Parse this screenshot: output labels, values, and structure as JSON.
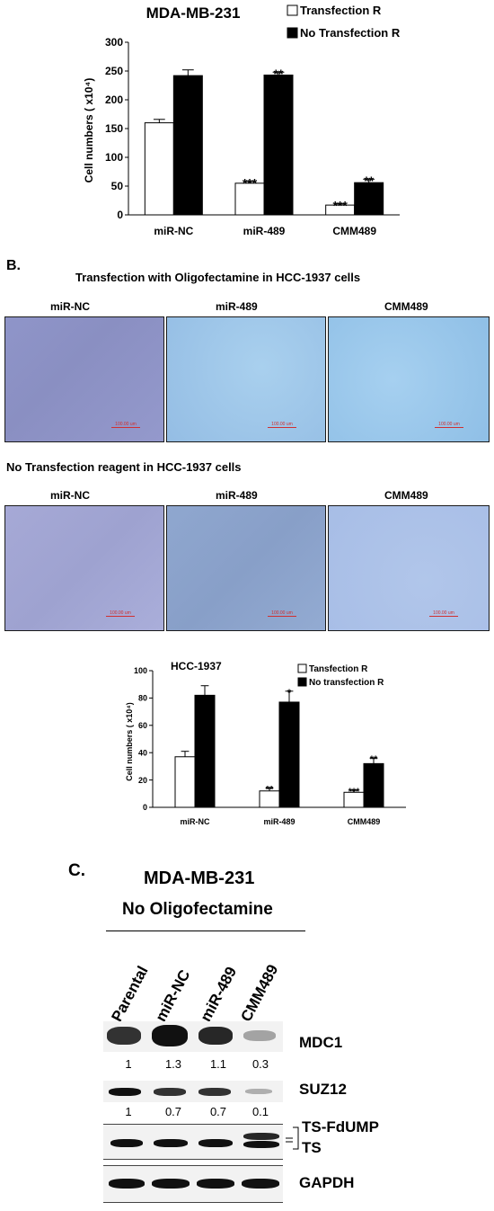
{
  "chart_data": [
    {
      "type": "bar",
      "title": "MDA-MB-231",
      "ylabel": "Cell numbers ( x10⁴)",
      "categories": [
        "miR-NC",
        "miR-489",
        "CMM489"
      ],
      "ylim": [
        0,
        300
      ],
      "yticks": [
        "0",
        "50",
        "100",
        "150",
        "200",
        "250",
        "300"
      ],
      "legend_position": "top-right",
      "series": [
        {
          "name": "Transfection R",
          "color": "#ffffff",
          "values": [
            160,
            55,
            17
          ],
          "errors": [
            6,
            3,
            2
          ],
          "annotations": [
            "",
            "***",
            "***"
          ]
        },
        {
          "name": "No Transfection R",
          "color": "#000000",
          "values": [
            242,
            243,
            56
          ],
          "errors": [
            10,
            5,
            6
          ],
          "annotations": [
            "",
            "**",
            "**"
          ]
        }
      ]
    },
    {
      "type": "bar",
      "title": "HCC-1937",
      "ylabel": "Cell numbers ( x10⁴)",
      "categories": [
        "miR-NC",
        "miR-489",
        "CMM489"
      ],
      "ylim": [
        0,
        100
      ],
      "yticks": [
        "0",
        "20",
        "40",
        "60",
        "80",
        "100"
      ],
      "legend_position": "top-right",
      "series": [
        {
          "name": "Tansfection R",
          "color": "#ffffff",
          "values": [
            37,
            12,
            11
          ],
          "errors": [
            4,
            2,
            1.5
          ],
          "annotations": [
            "",
            "**",
            "***"
          ]
        },
        {
          "name": "No transfection R",
          "color": "#000000",
          "values": [
            82,
            77,
            32
          ],
          "errors": [
            7,
            8,
            4
          ],
          "annotations": [
            "",
            "*",
            "**"
          ]
        }
      ]
    }
  ],
  "sectionB": {
    "letter": "B.",
    "row1_title": "Transfection with Oligofectamine in HCC-1937 cells",
    "row2_title": "No Transfection reagent in HCC-1937 cells",
    "panel_labels": [
      "miR-NC",
      "miR-489",
      "CMM489"
    ],
    "scale_label": "100.00 um"
  },
  "sectionC": {
    "letter": "C.",
    "title": "MDA-MB-231",
    "subtitle": "No Oligofectamine",
    "lanes": [
      "Parental",
      "miR-NC",
      "miR-489",
      "CMM489"
    ],
    "mdc1_label": "MDC1",
    "mdc1_values": [
      "1",
      "1.3",
      "1.1",
      "0.3"
    ],
    "suz12_label": "SUZ12",
    "suz12_values": [
      "1",
      "0.7",
      "0.7",
      "0.1"
    ],
    "ts_fdump_label": "TS-FdUMP",
    "ts_label": "TS",
    "gapdh_label": "GAPDH"
  }
}
